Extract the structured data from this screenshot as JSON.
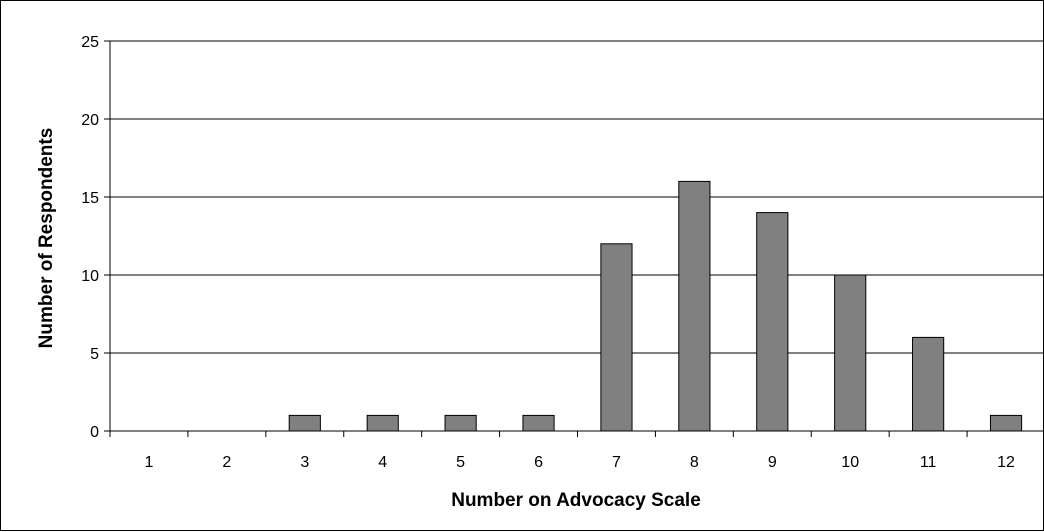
{
  "chart_data": {
    "type": "bar",
    "title": "",
    "xlabel": "Number on Advocacy Scale",
    "ylabel": "Number of Respondents",
    "categories": [
      "1",
      "2",
      "3",
      "4",
      "5",
      "6",
      "7",
      "8",
      "9",
      "10",
      "11",
      "12"
    ],
    "values": [
      0,
      0,
      1,
      1,
      1,
      1,
      12,
      16,
      14,
      10,
      6,
      1
    ],
    "ylim": [
      0,
      25
    ],
    "yticks": [
      "0",
      "5",
      "10",
      "15",
      "20",
      "25"
    ],
    "grid": "horizontal",
    "legend": "none",
    "colors": {
      "bar_fill": "#808080",
      "bar_stroke": "#000000",
      "grid": "#000000",
      "axis": "#000000",
      "background": "#ffffff"
    }
  }
}
